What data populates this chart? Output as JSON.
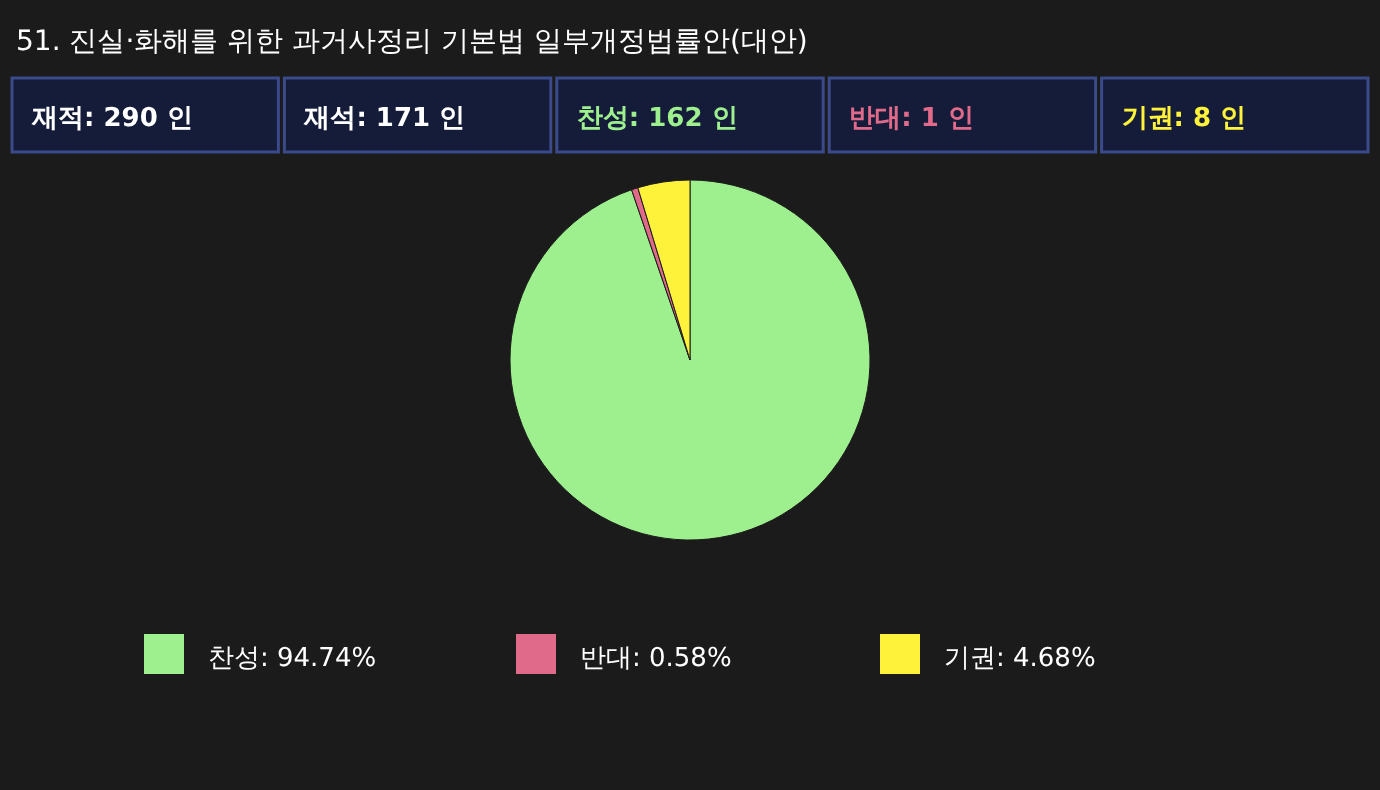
{
  "chart_data": {
    "type": "pie",
    "title": "51. 진실·화해를 위한 과거사정리 기본법 일부개정법률안(대안)",
    "annotations": [
      "재적: 290 인",
      "재석: 171 인",
      "찬성: 162 인",
      "반대: 1 인",
      "기권: 8 인"
    ],
    "categories": [
      "찬성",
      "반대",
      "기권"
    ],
    "values": [
      94.74,
      0.58,
      4.68
    ],
    "value_labels": [
      "94.74%",
      "0.58%",
      "4.68%"
    ],
    "colors": [
      "#9ef08f",
      "#e06a8a",
      "#fff23a"
    ],
    "legend": "bottom"
  }
}
